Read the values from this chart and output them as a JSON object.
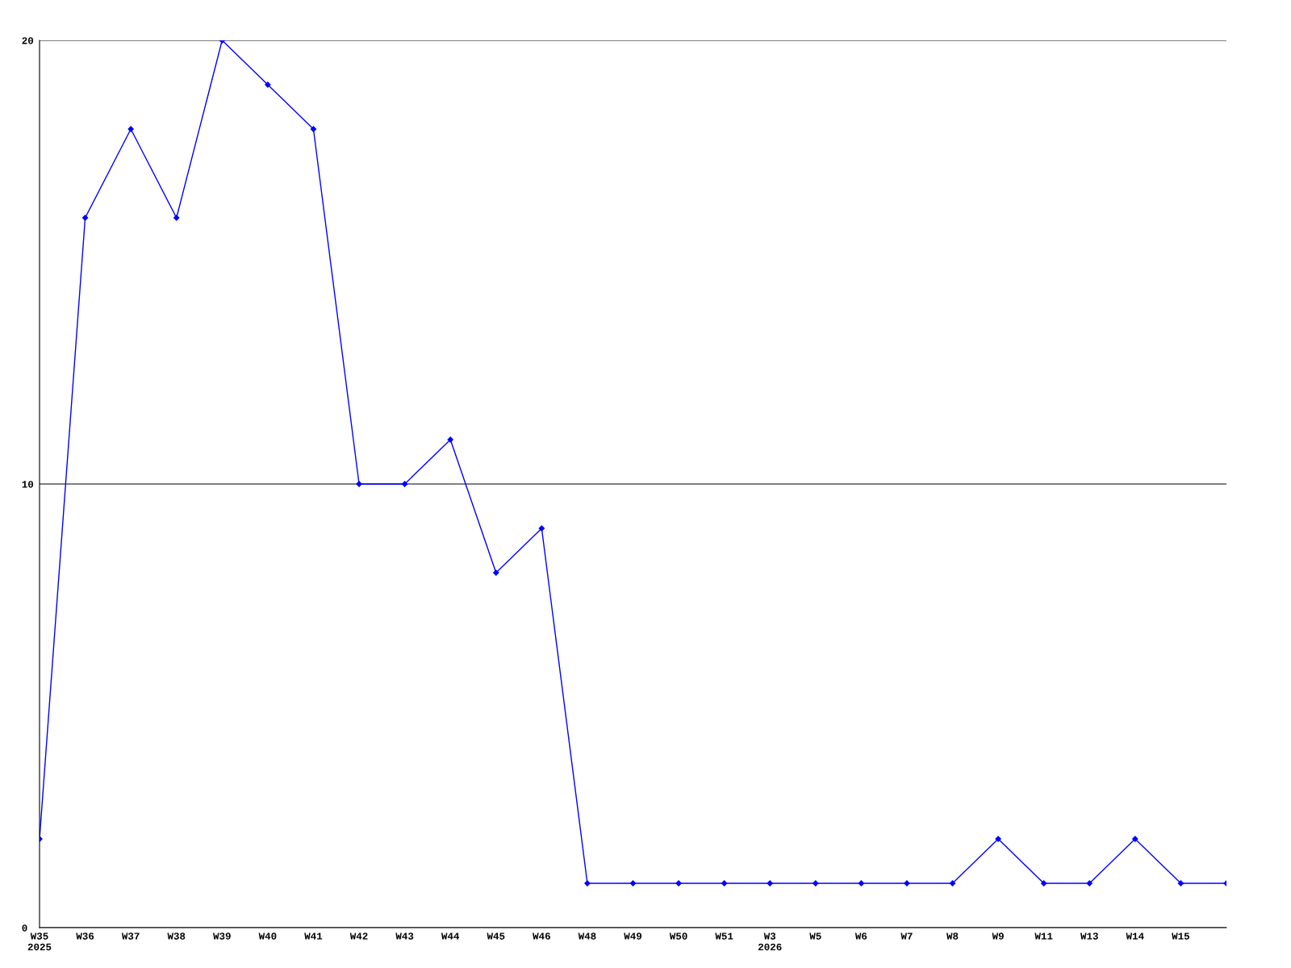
{
  "chart_data": {
    "type": "line",
    "categories": [
      "W35\n2025",
      "W36",
      "W37",
      "W38",
      "W39",
      "W40",
      "W41",
      "W42",
      "W43",
      "W44",
      "W45",
      "W46",
      "W48",
      "W49",
      "W50",
      "W51",
      "W3\n2026",
      "W5",
      "W6",
      "W7",
      "W8",
      "W9",
      "W11",
      "W13",
      "W14",
      "W15",
      null
    ],
    "series": [
      {
        "color": "#0000ff",
        "values": [
          2,
          16,
          18,
          16,
          20,
          19,
          18,
          10,
          10,
          11,
          8,
          9,
          1,
          1,
          1,
          1,
          1,
          1,
          1,
          1,
          1,
          2,
          1,
          1,
          2,
          1,
          1
        ]
      }
    ],
    "ylim": [
      0,
      20
    ],
    "yticks": [
      0,
      10,
      20
    ],
    "grid": "y",
    "marker": "diamond",
    "line_style": "solid"
  }
}
